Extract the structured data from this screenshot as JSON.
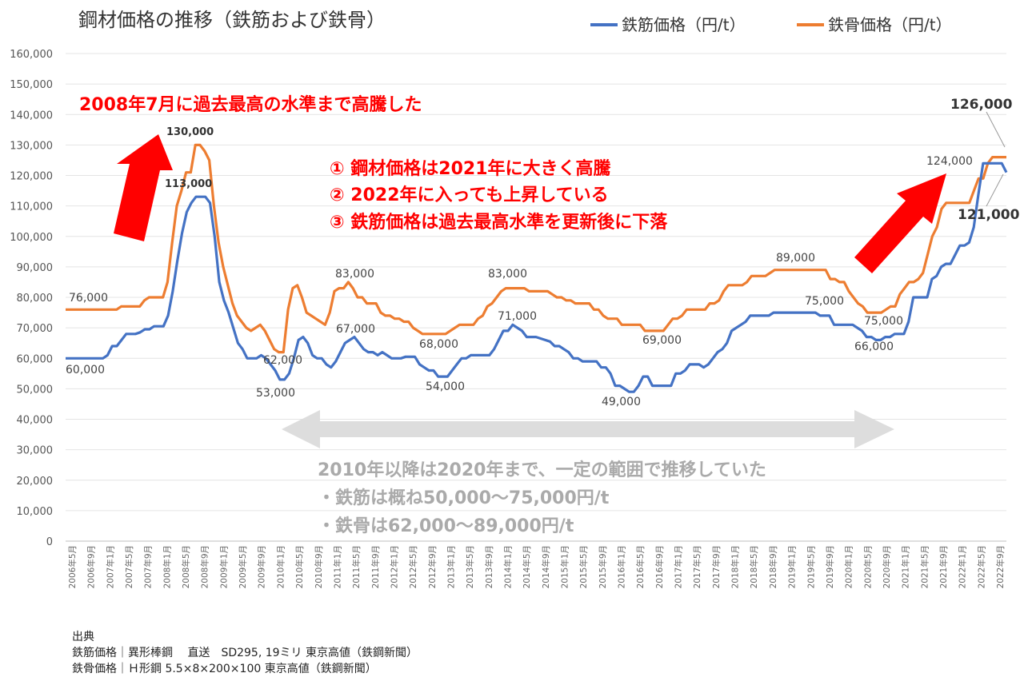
{
  "chart_data": {
    "type": "line",
    "title": "鋼材価格の推移（鉄筋および鉄骨）",
    "ylim": [
      0,
      160000
    ],
    "y_ticks": [
      "0",
      "10,000",
      "20,000",
      "30,000",
      "40,000",
      "50,000",
      "60,000",
      "70,000",
      "80,000",
      "90,000",
      "100,000",
      "110,000",
      "120,000",
      "130,000",
      "140,000",
      "150,000",
      "160,000"
    ],
    "x_labels": [
      "2006年5月",
      "2006年9月",
      "2007年1月",
      "2007年5月",
      "2007年9月",
      "2008年1月",
      "2008年5月",
      "2008年9月",
      "2009年1月",
      "2009年5月",
      "2009年9月",
      "2010年1月",
      "2010年5月",
      "2010年9月",
      "2011年1月",
      "2011年5月",
      "2011年9月",
      "2012年1月",
      "2012年5月",
      "2012年9月",
      "2013年1月",
      "2013年5月",
      "2013年9月",
      "2014年1月",
      "2014年5月",
      "2014年9月",
      "2015年1月",
      "2015年5月",
      "2015年9月",
      "2016年1月",
      "2016年5月",
      "2016年9月",
      "2017年1月",
      "2017年5月",
      "2017年9月",
      "2018年1月",
      "2018年5月",
      "2018年9月",
      "2019年1月",
      "2019年5月",
      "2019年9月",
      "2020年1月",
      "2020年5月",
      "2020年9月",
      "2021年1月",
      "2021年5月",
      "2021年9月",
      "2022年1月",
      "2022年5月",
      "2022年9月"
    ],
    "series": [
      {
        "name": "鉄筋価格（円/t）",
        "color": "#4472c4",
        "values": [
          60000,
          60000,
          60000,
          60000,
          60000,
          60000,
          60000,
          60000,
          60000,
          61000,
          64000,
          64000,
          66000,
          68000,
          68000,
          68000,
          68500,
          69500,
          69500,
          70500,
          70500,
          70500,
          74000,
          82000,
          92000,
          101000,
          108000,
          111000,
          113000,
          113000,
          113000,
          111000,
          100000,
          85000,
          79000,
          75000,
          70000,
          65000,
          63000,
          60000,
          60000,
          60000,
          61000,
          60000,
          58000,
          56000,
          53000,
          53000,
          55000,
          60000,
          66000,
          67000,
          65000,
          61000,
          60000,
          60000,
          58000,
          57000,
          59000,
          62000,
          65000,
          66000,
          67000,
          65000,
          63000,
          62000,
          62000,
          61000,
          62000,
          61000,
          60000,
          60000,
          60000,
          60500,
          60500,
          60500,
          58000,
          57000,
          56000,
          56000,
          54000,
          54000,
          54000,
          56000,
          58000,
          60000,
          60000,
          61000,
          61000,
          61000,
          61000,
          61000,
          63000,
          66000,
          69000,
          69000,
          71000,
          70000,
          69000,
          67000,
          67000,
          67000,
          66500,
          66000,
          65500,
          64000,
          64000,
          63000,
          62000,
          60000,
          60000,
          59000,
          59000,
          59000,
          59000,
          57000,
          57000,
          55000,
          51000,
          51000,
          50000,
          49000,
          49000,
          51000,
          54000,
          54000,
          51000,
          51000,
          51000,
          51000,
          51000,
          55000,
          55000,
          56000,
          58000,
          58000,
          58000,
          57000,
          58000,
          60000,
          62000,
          63000,
          65000,
          69000,
          70000,
          71000,
          72000,
          74000,
          74000,
          74000,
          74000,
          74000,
          75000,
          75000,
          75000,
          75000,
          75000,
          75000,
          75000,
          75000,
          75000,
          75000,
          74000,
          74000,
          74000,
          71000,
          71000,
          71000,
          71000,
          71000,
          70000,
          69000,
          67000,
          67000,
          66000,
          66000,
          67000,
          67000,
          68000,
          68000,
          68000,
          72000,
          80000,
          80000,
          80000,
          80000,
          86000,
          87000,
          90000,
          91000,
          91000,
          94000,
          97000,
          97000,
          98000,
          103000,
          114000,
          124000,
          124000,
          124000,
          124000,
          124000,
          121000
        ],
        "labels": [
          "60,000",
          "113,000",
          "53,000",
          "67,000",
          "54,000",
          "71,000",
          "49,000",
          "75,000",
          "66,000",
          "124,000",
          "121,000"
        ]
      },
      {
        "name": "鉄骨価格（円/t）",
        "color": "#ed7d31",
        "values": [
          76000,
          76000,
          76000,
          76000,
          76000,
          76000,
          76000,
          76000,
          76000,
          76000,
          76000,
          76000,
          77000,
          77000,
          77000,
          77000,
          77000,
          79000,
          80000,
          80000,
          80000,
          80000,
          85000,
          98000,
          110000,
          115000,
          121000,
          121000,
          130000,
          130000,
          128000,
          125000,
          110000,
          98000,
          90000,
          84000,
          78000,
          74000,
          72000,
          70000,
          69000,
          70000,
          71000,
          69000,
          66000,
          63000,
          62000,
          62000,
          76000,
          83000,
          84000,
          80000,
          75000,
          74000,
          73000,
          72000,
          71000,
          75000,
          82000,
          83000,
          83000,
          85000,
          83000,
          80000,
          80000,
          78000,
          78000,
          78000,
          75000,
          74000,
          74000,
          73000,
          73000,
          72000,
          72000,
          70000,
          69000,
          68000,
          68000,
          68000,
          68000,
          68000,
          68000,
          69000,
          70000,
          71000,
          71000,
          71000,
          71000,
          73000,
          74000,
          77000,
          78000,
          80000,
          82000,
          83000,
          83000,
          83000,
          83000,
          83000,
          82000,
          82000,
          82000,
          82000,
          82000,
          81000,
          80000,
          80000,
          79000,
          79000,
          78000,
          78000,
          78000,
          78000,
          76000,
          76000,
          74000,
          73000,
          73000,
          73000,
          71000,
          71000,
          71000,
          71000,
          71000,
          69000,
          69000,
          69000,
          69000,
          69000,
          71000,
          73000,
          73000,
          74000,
          76000,
          76000,
          76000,
          76000,
          76000,
          78000,
          78000,
          79000,
          82000,
          84000,
          84000,
          84000,
          84000,
          85000,
          87000,
          87000,
          87000,
          87000,
          88000,
          89000,
          89000,
          89000,
          89000,
          89000,
          89000,
          89000,
          89000,
          89000,
          89000,
          89000,
          89000,
          86000,
          86000,
          85000,
          85000,
          82000,
          80000,
          78000,
          77000,
          75000,
          75000,
          75000,
          75000,
          76000,
          77000,
          77000,
          81000,
          83000,
          85000,
          85000,
          86000,
          88000,
          94000,
          100000,
          103000,
          109000,
          111000,
          111000,
          111000,
          111000,
          111000,
          111000,
          115000,
          119000,
          119000,
          124000,
          126000,
          126000,
          126000,
          126000
        ],
        "labels": [
          "76,000",
          "130,000",
          "62,000",
          "83,000",
          "68,000",
          "83,000",
          "69,000",
          "89,000",
          "75,000",
          "126,000"
        ]
      }
    ],
    "annotations": {
      "peak_note": "2008年7月に過去最高の水準まで高騰した",
      "points": [
        "①  鋼材価格は2021年に大きく高騰",
        "②  2022年に入っても上昇している",
        "③  鉄筋価格は過去最高水準を更新後に下落"
      ],
      "range_title": "2010年以降は2020年まで、一定の範囲で推移していた",
      "range_rebar": "・鉄筋は概ね50,000〜75,000円/t",
      "range_steel": "・鉄骨は62,000〜89,000円/t"
    },
    "source": {
      "heading": "出典",
      "rebar": "鉄筋価格｜異形棒鋼　 直送　SD295, 19ミリ 東京高値（鉄鋼新聞）",
      "steel": "鉄骨価格｜Ｈ形鋼 5.5×8×200×100 東京高値（鉄鋼新聞）"
    }
  }
}
